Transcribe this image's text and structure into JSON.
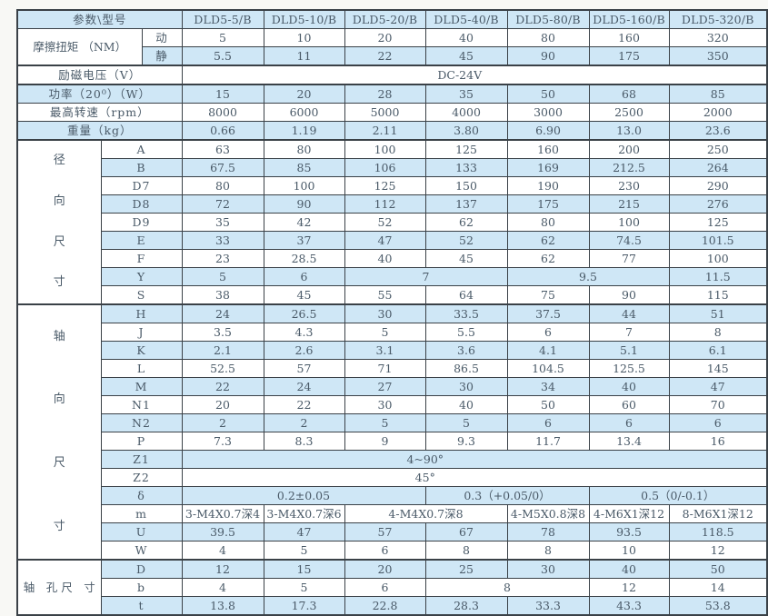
{
  "colors": {
    "row_blue": "#cfe7f6",
    "row_white": "#ffffff",
    "border": "#3a4147",
    "text": "#4a5a68",
    "label_text": "#333d47",
    "page_bg": "#f8f8f5"
  },
  "table": {
    "header_label": "参数\\型号",
    "models": [
      "DLD5-5/B",
      "DLD5-10/B",
      "DLD5-20/B",
      "DLD5-40/B",
      "DLD5-80/B",
      "DLD5-160/B",
      "DLD5-320/B"
    ],
    "rows": [
      {
        "bg": "blue",
        "header": true,
        "labels": [
          {
            "t": "参数\\型号",
            "cs": 3,
            "name": "param-model-header"
          }
        ],
        "cells": [
          "DLD5-5/B",
          "DLD5-10/B",
          "DLD5-20/B",
          "DLD5-40/B",
          "DLD5-80/B",
          "DLD5-160/B",
          "DLD5-320/B"
        ]
      },
      {
        "bg": "white",
        "labels": [
          {
            "t": "摩擦扭矩\n（NM）",
            "cs": 2,
            "rs": 2,
            "group": true,
            "name": "friction-torque-label"
          },
          {
            "t": "动",
            "name": "dynamic-label"
          }
        ],
        "cells": [
          "5",
          "10",
          "20",
          "40",
          "80",
          "160",
          "320"
        ]
      },
      {
        "bg": "blue",
        "labels": [
          {
            "t": "静",
            "name": "static-label"
          }
        ],
        "cells": [
          "5.5",
          "11",
          "22",
          "45",
          "90",
          "175",
          "350"
        ]
      },
      {
        "bg": "white",
        "thick": true,
        "labels": [
          {
            "t": "励磁电压（V）",
            "cs": 3,
            "name": "excitation-voltage-label"
          }
        ],
        "cells": [
          {
            "t": "DC-24V",
            "cs": 7,
            "shift": -16
          }
        ]
      },
      {
        "bg": "blue",
        "thick": true,
        "labels": [
          {
            "t": "功率（20⁰）（W）",
            "cs": 3,
            "name": "power-label"
          }
        ],
        "cells": [
          "15",
          "20",
          "28",
          "35",
          "50",
          "68",
          "85"
        ]
      },
      {
        "bg": "white",
        "labels": [
          {
            "t": "最高转速（rpm）",
            "cs": 3,
            "name": "max-speed-label"
          }
        ],
        "cells": [
          "8000",
          "6000",
          "5000",
          "4000",
          "3000",
          "2500",
          "2000"
        ]
      },
      {
        "bg": "blue",
        "labels": [
          {
            "t": "重量（kg）",
            "cs": 3,
            "name": "weight-label"
          }
        ],
        "cells": [
          "0.66",
          "1.19",
          "2.11",
          "3.80",
          "6.90",
          "13.0",
          "23.6"
        ]
      },
      {
        "bg": "white",
        "thick": true,
        "labels": [
          {
            "t": "径向尺寸",
            "rs": 9,
            "vertical": true,
            "name": "radial-dimensions-label"
          },
          {
            "t": "A",
            "cs": 2
          }
        ],
        "cells": [
          "63",
          "80",
          "100",
          "125",
          "160",
          "200",
          "250"
        ]
      },
      {
        "bg": "blue",
        "labels": [
          {
            "t": "B",
            "cs": 2
          }
        ],
        "cells": [
          "67.5",
          "85",
          "106",
          "133",
          "169",
          "212.5",
          "264"
        ]
      },
      {
        "bg": "white",
        "labels": [
          {
            "t": "D7",
            "cs": 2
          }
        ],
        "cells": [
          "80",
          "100",
          "125",
          "150",
          "190",
          "230",
          "290"
        ]
      },
      {
        "bg": "blue",
        "labels": [
          {
            "t": "D8",
            "cs": 2
          }
        ],
        "cells": [
          "72",
          "90",
          "112",
          "137",
          "175",
          "215",
          "276"
        ]
      },
      {
        "bg": "white",
        "labels": [
          {
            "t": "D9",
            "cs": 2
          }
        ],
        "cells": [
          "35",
          "42",
          "52",
          "62",
          "80",
          "100",
          "125"
        ]
      },
      {
        "bg": "blue",
        "labels": [
          {
            "t": "E",
            "cs": 2
          }
        ],
        "cells": [
          "33",
          "37",
          "47",
          "52",
          "62",
          "74.5",
          "101.5"
        ]
      },
      {
        "bg": "white",
        "labels": [
          {
            "t": "F",
            "cs": 2
          }
        ],
        "cells": [
          "23",
          "28.5",
          "40",
          "45",
          "62",
          "77",
          "100"
        ]
      },
      {
        "bg": "blue",
        "labels": [
          {
            "t": "Y",
            "cs": 2
          }
        ],
        "cells": [
          "5",
          "6",
          {
            "t": "7",
            "cs": 2
          },
          {
            "t": "9.5",
            "cs": 2
          },
          "11.5"
        ]
      },
      {
        "bg": "white",
        "labels": [
          {
            "t": "S",
            "cs": 2
          }
        ],
        "cells": [
          "38",
          "45",
          "55",
          "64",
          "75",
          "90",
          "115"
        ]
      },
      {
        "bg": "blue",
        "thick": true,
        "labels": [
          {
            "t": "轴向尺寸",
            "rs": 14,
            "vertical": true,
            "name": "axial-dimensions-label"
          },
          {
            "t": "H",
            "cs": 2
          }
        ],
        "cells": [
          "24",
          "26.5",
          "30",
          "33.5",
          "37.5",
          "44",
          "51"
        ]
      },
      {
        "bg": "white",
        "labels": [
          {
            "t": "J",
            "cs": 2
          }
        ],
        "cells": [
          "3.5",
          "4.3",
          "5",
          "5.5",
          "6",
          "7",
          "8"
        ]
      },
      {
        "bg": "blue",
        "labels": [
          {
            "t": "K",
            "cs": 2
          }
        ],
        "cells": [
          "2.1",
          "2.6",
          "3.1",
          "3.6",
          "4.1",
          "5.1",
          "6.1"
        ]
      },
      {
        "bg": "white",
        "labels": [
          {
            "t": "L",
            "cs": 2
          }
        ],
        "cells": [
          "52.5",
          "57",
          "71",
          "86.5",
          "104.5",
          "125.5",
          "145"
        ]
      },
      {
        "bg": "blue",
        "labels": [
          {
            "t": "M",
            "cs": 2
          }
        ],
        "cells": [
          "22",
          "24",
          "27",
          "30",
          "34",
          "40",
          "47"
        ]
      },
      {
        "bg": "white",
        "labels": [
          {
            "t": "N1",
            "cs": 2
          }
        ],
        "cells": [
          "20",
          "22",
          "30",
          "40",
          "50",
          "60",
          "70"
        ]
      },
      {
        "bg": "blue",
        "labels": [
          {
            "t": "N2",
            "cs": 2
          }
        ],
        "cells": [
          "2",
          "2",
          "5",
          "5",
          "6",
          "6",
          "6"
        ]
      },
      {
        "bg": "white",
        "labels": [
          {
            "t": "P",
            "cs": 2
          }
        ],
        "cells": [
          "7.3",
          "8.3",
          "9",
          "9.3",
          "11.7",
          "13.4",
          "16"
        ]
      },
      {
        "bg": "blue",
        "labels": [
          {
            "t": "Z1",
            "cs": 2
          }
        ],
        "cells": [
          {
            "t": "4~90°",
            "cs": 7,
            "shift": -54
          }
        ]
      },
      {
        "bg": "white",
        "labels": [
          {
            "t": "Z2",
            "cs": 2
          }
        ],
        "cells": [
          {
            "t": "45°",
            "cs": 7,
            "shift": -54
          }
        ]
      },
      {
        "bg": "blue",
        "labels": [
          {
            "t": "δ",
            "cs": 2
          }
        ],
        "cells": [
          {
            "t": "0.2±0.05",
            "cs": 3
          },
          {
            "t": "0.3（+0.05/0）",
            "cs": 2
          },
          {
            "t": "0.5（0/-0.1）",
            "cs": 2
          }
        ]
      },
      {
        "bg": "white",
        "labels": [
          {
            "t": "m",
            "cs": 2
          }
        ],
        "cells": [
          "3-M4X0.7深4",
          "3-M4X0.7深6",
          {
            "t": "4-M4X0.7深8",
            "cs": 2
          },
          "4-M5X0.8深8",
          "4-M6X1深12",
          "8-M6X1深12"
        ]
      },
      {
        "bg": "blue",
        "labels": [
          {
            "t": "U",
            "cs": 2
          }
        ],
        "cells": [
          "39.5",
          "47",
          "57",
          "67",
          "78",
          "93.5",
          "118.5"
        ]
      },
      {
        "bg": "white",
        "labels": [
          {
            "t": "W",
            "cs": 2
          }
        ],
        "cells": [
          "4",
          "5",
          "6",
          "8",
          "8",
          "10",
          "12"
        ]
      },
      {
        "bg": "blue",
        "thick": true,
        "labels": [
          {
            "t": "轴　孔\n尺　寸",
            "rs": 3,
            "group": true,
            "name": "shaft-hole-dimensions-label"
          },
          {
            "t": "D",
            "cs": 2
          }
        ],
        "cells": [
          "12",
          "15",
          "20",
          "25",
          "30",
          "40",
          "50"
        ]
      },
      {
        "bg": "white",
        "labels": [
          {
            "t": "b",
            "cs": 2
          }
        ],
        "cells": [
          "4",
          "5",
          "6",
          {
            "t": "8",
            "cs": 2
          },
          "12",
          "14"
        ]
      },
      {
        "bg": "blue",
        "labels": [
          {
            "t": "t",
            "cs": 2
          }
        ],
        "cells": [
          "13.8",
          "17.3",
          "22.8",
          "28.3",
          "33.3",
          "43.3",
          "53.8"
        ]
      }
    ]
  }
}
